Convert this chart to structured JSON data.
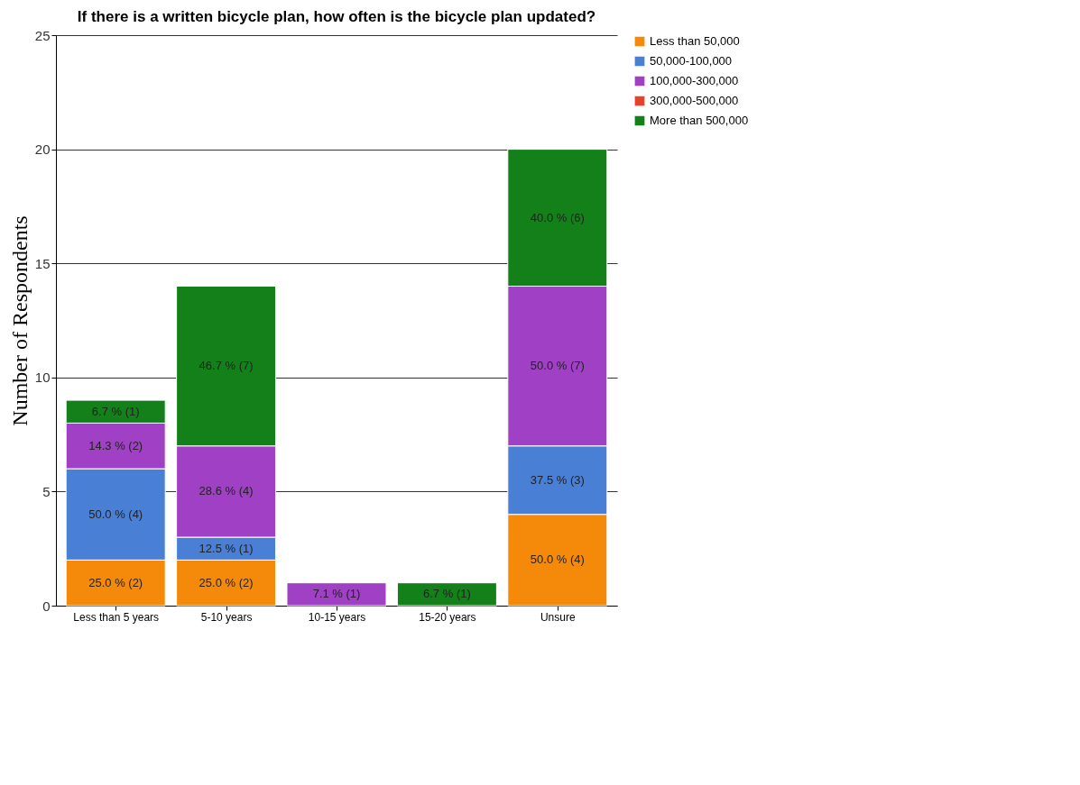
{
  "chart_data": {
    "type": "bar",
    "title": "If there is a written bicycle plan, how often is the bicycle plan updated?",
    "ylabel": "Number of Respondents",
    "categories": [
      "Less than 5 years",
      "5-10 years",
      "10-15 years",
      "15-20 years",
      "Unsure"
    ],
    "stacked": true,
    "series": [
      {
        "name": "Less than 50,000",
        "color": "#f58a0a",
        "values": [
          2,
          2,
          null,
          null,
          4
        ],
        "value_labels": [
          "25.0 % (2)",
          "25.0 % (2)",
          null,
          null,
          "50.0 % (4)"
        ]
      },
      {
        "name": "50,000-100,000",
        "color": "#4a7fd6",
        "values": [
          4,
          1,
          null,
          null,
          3
        ],
        "value_labels": [
          "50.0 % (4)",
          "12.5 % (1)",
          null,
          null,
          "37.5 % (3)"
        ]
      },
      {
        "name": "100,000-300,000",
        "color": "#a040c4",
        "values": [
          2,
          4,
          1,
          null,
          7
        ],
        "value_labels": [
          "14.3 % (2)",
          "28.6 % (4)",
          "7.1 % (1)",
          null,
          "50.0 % (7)"
        ]
      },
      {
        "name": "300,000-500,000",
        "color": "#e8402a",
        "values": [
          null,
          null,
          null,
          null,
          null
        ]
      },
      {
        "name": "More than 500,000",
        "color": "#14801a",
        "values": [
          1,
          7,
          null,
          1,
          6
        ],
        "value_labels": [
          "6.7 % (1)",
          "46.7 % (7)",
          null,
          "6.7 % (1)",
          "40.0 % (6)"
        ]
      }
    ],
    "ylim": [
      0,
      25
    ],
    "yticks": [
      0,
      5,
      10,
      15,
      20,
      25
    ],
    "grid": "y",
    "legend": "right"
  }
}
